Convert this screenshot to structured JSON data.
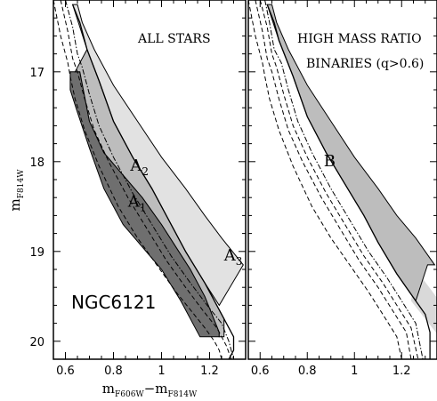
{
  "colors": {
    "dark_region": "#6f6f6f",
    "mid_region": "#bdbdbd",
    "light_region": "#e2e2e2",
    "binary_band": "#d9d9d9",
    "line": "#000000"
  },
  "chart_data": [
    {
      "type": "scatter",
      "panel": "left",
      "title": "ALL STARS",
      "xlabel": "mF606W−mF814W",
      "xlabel_main": "m",
      "xlabel_sub1": "F606W",
      "xlabel_minus": "−m",
      "xlabel_sub2": "F814W",
      "ylabel": "mF814W",
      "ylabel_main": "m",
      "ylabel_sub": "F814W",
      "xlim": [
        0.55,
        1.35
      ],
      "ylim": [
        20.2,
        16.2
      ],
      "y_inverted": true,
      "xticks": [
        0.6,
        0.8,
        1.0,
        1.2
      ],
      "xtick_labels": [
        "0.6",
        "0.8",
        "1",
        "1.2"
      ],
      "yticks": [
        17,
        18,
        19,
        20
      ],
      "ytick_labels": [
        "17",
        "18",
        "19",
        "20"
      ],
      "annotation": "NGC6121",
      "regions": [
        {
          "label": "A1",
          "label_main": "A",
          "label_sub": "1",
          "shade": "dark",
          "label_at": [
            0.86,
            18.5
          ],
          "boundary": [
            [
              0.62,
              17.0
            ],
            [
              0.66,
              17.0
            ],
            [
              0.7,
              17.55
            ],
            [
              0.76,
              17.9
            ],
            [
              0.84,
              18.15
            ],
            [
              0.92,
              18.4
            ],
            [
              1.0,
              18.7
            ],
            [
              1.06,
              18.95
            ],
            [
              1.12,
              19.2
            ],
            [
              1.18,
              19.5
            ],
            [
              1.24,
              19.9
            ],
            [
              1.24,
              19.95
            ],
            [
              1.16,
              19.95
            ],
            [
              1.08,
              19.55
            ],
            [
              1.0,
              19.2
            ],
            [
              0.92,
              18.95
            ],
            [
              0.84,
              18.7
            ],
            [
              0.76,
              18.3
            ],
            [
              0.7,
              17.85
            ],
            [
              0.65,
              17.45
            ],
            [
              0.62,
              17.2
            ]
          ]
        },
        {
          "label": "A2",
          "label_main": "A",
          "label_sub": "2",
          "shade": "mid",
          "label_at": [
            0.87,
            18.1
          ],
          "boundary": [
            [
              0.64,
              17.0
            ],
            [
              0.69,
              16.75
            ],
            [
              0.74,
              17.1
            ],
            [
              0.8,
              17.55
            ],
            [
              0.88,
              17.95
            ],
            [
              0.96,
              18.3
            ],
            [
              1.04,
              18.7
            ],
            [
              1.1,
              19.0
            ],
            [
              1.18,
              19.35
            ],
            [
              1.26,
              19.75
            ],
            [
              1.26,
              19.95
            ],
            [
              1.24,
              19.95
            ],
            [
              1.24,
              19.9
            ],
            [
              1.18,
              19.5
            ],
            [
              1.12,
              19.2
            ],
            [
              1.06,
              18.95
            ],
            [
              1.0,
              18.7
            ],
            [
              0.92,
              18.4
            ],
            [
              0.84,
              18.15
            ],
            [
              0.76,
              17.9
            ],
            [
              0.7,
              17.55
            ],
            [
              0.66,
              17.0
            ]
          ]
        },
        {
          "label": "A3",
          "label_main": "A",
          "label_sub": "3",
          "shade": "light",
          "label_at": [
            1.26,
            19.1
          ],
          "boundary": [
            [
              0.63,
              16.25
            ],
            [
              0.69,
              16.75
            ],
            [
              0.74,
              17.1
            ],
            [
              0.8,
              17.55
            ],
            [
              0.88,
              17.95
            ],
            [
              0.96,
              18.3
            ],
            [
              1.04,
              18.7
            ],
            [
              1.1,
              19.0
            ],
            [
              1.18,
              19.35
            ],
            [
              1.24,
              19.6
            ],
            [
              1.34,
              19.15
            ],
            [
              1.34,
              19.15
            ],
            [
              1.25,
              18.85
            ],
            [
              1.18,
              18.6
            ],
            [
              1.1,
              18.3
            ],
            [
              1.0,
              17.95
            ],
            [
              0.9,
              17.55
            ],
            [
              0.8,
              17.15
            ],
            [
              0.72,
              16.75
            ],
            [
              0.67,
              16.45
            ],
            [
              0.65,
              16.25
            ]
          ]
        }
      ],
      "lines": [
        {
          "style": "dashed",
          "x": [
            0.55,
            0.58,
            0.61,
            0.62,
            0.64,
            0.68,
            0.74,
            0.82,
            0.9,
            0.98,
            1.06,
            1.12,
            1.18,
            1.22,
            1.24,
            1.25
          ],
          "y": [
            16.2,
            16.6,
            16.9,
            17.05,
            17.3,
            17.65,
            18.05,
            18.5,
            18.85,
            19.15,
            19.45,
            19.65,
            19.85,
            20.0,
            20.1,
            20.2
          ]
        },
        {
          "style": "dashed",
          "x": [
            0.58,
            0.61,
            0.63,
            0.65,
            0.68,
            0.72,
            0.78,
            0.86,
            0.94,
            1.02,
            1.1,
            1.17,
            1.23,
            1.27,
            1.29
          ],
          "y": [
            16.2,
            16.55,
            16.85,
            17.0,
            17.3,
            17.65,
            18.0,
            18.4,
            18.75,
            19.1,
            19.4,
            19.65,
            19.85,
            20.05,
            20.2
          ]
        },
        {
          "style": "dashdot",
          "x": [
            0.6,
            0.63,
            0.65,
            0.67,
            0.7,
            0.74,
            0.8,
            0.88,
            0.96,
            1.04,
            1.12,
            1.19,
            1.25,
            1.28,
            1.3
          ],
          "y": [
            16.2,
            16.5,
            16.8,
            16.95,
            17.25,
            17.6,
            17.95,
            18.35,
            18.7,
            19.05,
            19.35,
            19.6,
            19.8,
            20.0,
            20.2
          ]
        },
        {
          "style": "solid",
          "x": [
            0.63,
            0.66,
            0.69,
            0.74,
            0.8,
            0.88,
            0.96,
            1.04,
            1.1,
            1.18,
            1.26,
            1.3,
            1.3,
            1.28
          ],
          "y": [
            16.25,
            16.45,
            16.75,
            17.1,
            17.55,
            17.95,
            18.3,
            18.7,
            19.0,
            19.35,
            19.75,
            19.95,
            20.1,
            20.2
          ]
        }
      ]
    },
    {
      "type": "scatter",
      "panel": "right",
      "title": "HIGH MASS RATIO",
      "subtitle": "BINARIES (q>0.6)",
      "xlim": [
        0.55,
        1.35
      ],
      "ylim": [
        20.2,
        16.2
      ],
      "y_inverted": true,
      "xticks": [
        0.6,
        0.8,
        1.0,
        1.2
      ],
      "xtick_labels": [
        "0.6",
        "0.8",
        "1",
        "1.2"
      ],
      "regions": [
        {
          "label": "B",
          "shade": "mid",
          "label_at": [
            0.87,
            18.05
          ],
          "boundary": [
            [
              0.63,
              16.25
            ],
            [
              0.68,
              16.65
            ],
            [
              0.74,
              17.05
            ],
            [
              0.8,
              17.5
            ],
            [
              0.88,
              17.9
            ],
            [
              0.96,
              18.25
            ],
            [
              1.04,
              18.6
            ],
            [
              1.1,
              18.9
            ],
            [
              1.18,
              19.25
            ],
            [
              1.26,
              19.55
            ],
            [
              1.31,
              19.15
            ],
            [
              1.34,
              19.15
            ],
            [
              1.26,
              18.85
            ],
            [
              1.18,
              18.6
            ],
            [
              1.1,
              18.3
            ],
            [
              1.0,
              17.95
            ],
            [
              0.9,
              17.55
            ],
            [
              0.8,
              17.15
            ],
            [
              0.72,
              16.75
            ],
            [
              0.67,
              16.45
            ],
            [
              0.65,
              16.25
            ]
          ]
        }
      ],
      "lines": [
        {
          "style": "dashed",
          "x": [
            0.55,
            0.58,
            0.61,
            0.62,
            0.64,
            0.68,
            0.74,
            0.82,
            0.9,
            0.98,
            1.06,
            1.12,
            1.18,
            1.2
          ],
          "y": [
            16.2,
            16.6,
            16.9,
            17.05,
            17.3,
            17.65,
            18.05,
            18.5,
            18.85,
            19.15,
            19.45,
            19.7,
            19.95,
            20.2
          ]
        },
        {
          "style": "dashed",
          "x": [
            0.58,
            0.61,
            0.63,
            0.65,
            0.68,
            0.72,
            0.78,
            0.86,
            0.94,
            1.02,
            1.1,
            1.16,
            1.22,
            1.24
          ],
          "y": [
            16.2,
            16.55,
            16.85,
            17.0,
            17.3,
            17.65,
            18.0,
            18.4,
            18.75,
            19.1,
            19.4,
            19.65,
            19.9,
            20.2
          ]
        },
        {
          "style": "dashed",
          "x": [
            0.6,
            0.63,
            0.65,
            0.67,
            0.7,
            0.74,
            0.8,
            0.88,
            0.96,
            1.04,
            1.12,
            1.18,
            1.24,
            1.27
          ],
          "y": [
            16.2,
            16.5,
            16.8,
            16.95,
            17.25,
            17.6,
            17.95,
            18.35,
            18.7,
            19.05,
            19.35,
            19.6,
            19.85,
            20.2
          ]
        },
        {
          "style": "dashdot",
          "x": [
            0.62,
            0.64,
            0.66,
            0.69,
            0.72,
            0.76,
            0.82,
            0.9,
            0.98,
            1.06,
            1.14,
            1.2,
            1.26,
            1.29
          ],
          "y": [
            16.2,
            16.45,
            16.75,
            16.9,
            17.2,
            17.55,
            17.9,
            18.3,
            18.65,
            19.0,
            19.3,
            19.55,
            19.8,
            20.2
          ]
        },
        {
          "style": "solid",
          "x": [
            0.63,
            0.66,
            0.68,
            0.74,
            0.8,
            0.88,
            0.96,
            1.04,
            1.1,
            1.18,
            1.26,
            1.3,
            1.32,
            1.32
          ],
          "y": [
            16.25,
            16.45,
            16.65,
            17.05,
            17.5,
            17.9,
            18.25,
            18.6,
            18.9,
            19.25,
            19.55,
            19.7,
            19.9,
            20.2
          ]
        }
      ]
    }
  ]
}
